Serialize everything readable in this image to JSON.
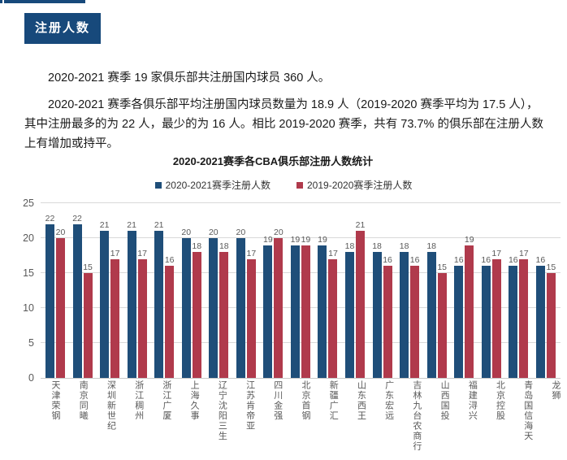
{
  "page": {
    "badge": "注册人数",
    "paragraphs": [
      "2020-2021 赛季 19 家俱乐部共注册国内球员 360 人。",
      "2020-2021 赛季各俱乐部平均注册国内球员数量为 18.9 人（2019-2020 赛季平均为 17.5 人），其中注册最多的为 22 人，最少的为 16 人。相比 2019-2020 赛季，共有 73.7% 的俱乐部在注册人数上有增加或持平。"
    ]
  },
  "colors": {
    "badge_bg": "#17497B",
    "series_blue": "#1F4E79",
    "series_red": "#B03A4C",
    "axis_text": "#595959",
    "gridline": "#D9D9D9"
  },
  "chart_data": {
    "type": "bar",
    "title": "2020-2021赛季各CBA俱乐部注册人数统计",
    "xlabel": "",
    "ylabel": "",
    "ylim": [
      0,
      25
    ],
    "yticks": [
      0,
      5,
      10,
      15,
      20,
      25
    ],
    "grid": true,
    "legend_position": "top",
    "categories": [
      "天津荣钢",
      "南京同曦",
      "深圳新世纪",
      "浙江稠州",
      "浙江广厦",
      "上海久事",
      "辽宁沈阳三生",
      "江苏肯帝亚",
      "四川金强",
      "北京首钢",
      "新疆广汇",
      "山东西王",
      "广东宏远",
      "吉林九台农商行",
      "山西国投",
      "福建浔兴",
      "北京控股",
      "青岛国信海天",
      "龙狮"
    ],
    "series": [
      {
        "name": "2020-2021赛季注册人数",
        "color": "#1F4E79",
        "values": [
          22,
          22,
          21,
          21,
          21,
          20,
          20,
          20,
          19,
          19,
          19,
          18,
          18,
          18,
          18,
          16,
          16,
          16,
          16
        ]
      },
      {
        "name": "2019-2020赛季注册人数",
        "color": "#B03A4C",
        "values": [
          20,
          15,
          17,
          17,
          16,
          18,
          18,
          17,
          20,
          19,
          17,
          21,
          16,
          16,
          15,
          19,
          17,
          17,
          15
        ]
      }
    ]
  }
}
